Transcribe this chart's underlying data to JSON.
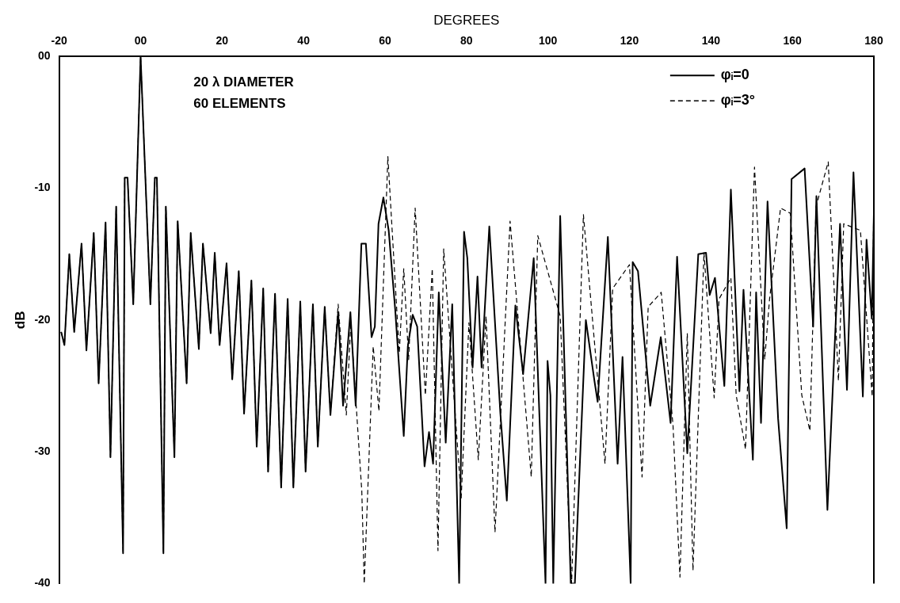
{
  "chart_data": {
    "type": "line",
    "xlabel": "DEGREES",
    "ylabel": "dB",
    "annotations": [
      "20 λ DIAMETER",
      "60 ELEMENTS"
    ],
    "xlim": [
      -20,
      180
    ],
    "xticks": [
      -20,
      {
        "value": 0,
        "label": "00"
      },
      20,
      40,
      60,
      80,
      100,
      120,
      140,
      160,
      180
    ],
    "ylim": [
      -40,
      0
    ],
    "yticks": [
      {
        "value": 0,
        "label": "00"
      },
      -10,
      -20,
      -30,
      -40
    ],
    "grid": false,
    "legend": "top right",
    "marker": "none",
    "series": [
      {
        "name": "φᵢ=0",
        "color": "#000000",
        "line_style": "solid",
        "x": [
          -19.5,
          -18.7,
          -17.5,
          -16.3,
          -14.5,
          -13.3,
          -11.5,
          -10.3,
          -8.6,
          -7.4,
          -6.0,
          -4.3,
          -3.9,
          -3.2,
          -1.8,
          0,
          2.4,
          3.5,
          4.0,
          5.6,
          6.2,
          8.3,
          9.1,
          11.3,
          12.3,
          14.3,
          15.3,
          17.2,
          18.2,
          19.4,
          21.1,
          22.5,
          24.1,
          25.4,
          27.2,
          28.5,
          30.1,
          31.3,
          33.0,
          34.5,
          36.1,
          37.5,
          39.2,
          40.5,
          42.3,
          43.5,
          45.2,
          46.6,
          48.5,
          49.7,
          51.5,
          52.8,
          54.2,
          55.3,
          56.7,
          57.5,
          58.4,
          59.6,
          60.9,
          62.5,
          64.6,
          65.6,
          66.8,
          67.9,
          69.7,
          70.8,
          71.8,
          73.2,
          74.9,
          76.5,
          78.2,
          79.4,
          80.2,
          81.5,
          82.7,
          83.7,
          85.6,
          88.3,
          89.9,
          92.0,
          93.9,
          96.5,
          99.4,
          99.9,
          100.6,
          101.3,
          103.0,
          105.6,
          106.6,
          109.3,
          111.4,
          112.2,
          114.7,
          117.1,
          118.3,
          120.3,
          120.8,
          122.1,
          125.1,
          127.7,
          130.1,
          131.7,
          134.2,
          136.9,
          138.8,
          139.7,
          141.0,
          143.3,
          144.9,
          147.0,
          148.0,
          150.3,
          151.1,
          152.3,
          153.9,
          156.5,
          158.6,
          159.8,
          163.0,
          165.1,
          165.9,
          168.6,
          171.7,
          173.4,
          175.0,
          177.3,
          178.2,
          179.5,
          180
        ],
        "values": [
          -20.9,
          -21.9,
          -15.0,
          -20.9,
          -14.2,
          -22.3,
          -13.4,
          -24.8,
          -12.6,
          -30.4,
          -11.4,
          -37.7,
          -9.2,
          -9.2,
          -18.8,
          0,
          -18.8,
          -9.2,
          -9.2,
          -37.7,
          -11.4,
          -30.4,
          -12.5,
          -24.8,
          -13.4,
          -22.2,
          -14.2,
          -21.0,
          -14.9,
          -21.9,
          -15.7,
          -24.5,
          -16.3,
          -27.1,
          -17.0,
          -29.6,
          -17.6,
          -31.5,
          -18.0,
          -32.7,
          -18.4,
          -32.7,
          -18.6,
          -31.5,
          -18.8,
          -29.6,
          -19.0,
          -27.2,
          -19.4,
          -26.5,
          -19.4,
          -26.5,
          -14.2,
          -14.2,
          -21.3,
          -20.5,
          -12.7,
          -10.7,
          -13.2,
          -19.2,
          -28.8,
          -22.0,
          -19.6,
          -20.5,
          -31.1,
          -28.5,
          -30.9,
          -17.9,
          -29.3,
          -18.8,
          -40,
          -13.3,
          -15.3,
          -23.6,
          -16.7,
          -23.6,
          -12.9,
          -27.0,
          -33.7,
          -18.9,
          -24.1,
          -15.3,
          -40,
          -23.1,
          -25.7,
          -40,
          -12.1,
          -40,
          -40,
          -20.0,
          -24.6,
          -26.2,
          -13.7,
          -30.9,
          -22.8,
          -40,
          -15.6,
          -16.3,
          -26.5,
          -21.3,
          -27.8,
          -15.2,
          -30.1,
          -15.0,
          -14.9,
          -18.1,
          -16.8,
          -25.0,
          -10.1,
          -25.4,
          -17.7,
          -30.6,
          -17.9,
          -27.8,
          -11.0,
          -27.5,
          -35.8,
          -9.3,
          -8.5,
          -20.5,
          -10.6,
          -34.4,
          -12.7,
          -25.3,
          -8.8,
          -25.8,
          -13.9,
          -19.9,
          -12.0
        ]
      },
      {
        "name": "φᵢ=3°",
        "color": "#000000",
        "line_style": "dashed",
        "x": [
          -19.5,
          -18.7,
          -17.5,
          -16.3,
          -14.5,
          -13.3,
          -11.5,
          -10.3,
          -8.6,
          -7.4,
          -6.0,
          -4.3,
          -3.9,
          -3.2,
          -1.8,
          0,
          2.4,
          3.5,
          4.0,
          5.6,
          6.2,
          8.3,
          9.1,
          11.3,
          12.3,
          14.3,
          15.3,
          17.2,
          18.2,
          19.4,
          21.1,
          22.5,
          24.1,
          25.4,
          27.2,
          28.5,
          30.1,
          31.3,
          33.0,
          34.5,
          36.1,
          37.5,
          39.2,
          40.5,
          42.3,
          43.5,
          45.2,
          46.6,
          48.5,
          50.5,
          51.6,
          54.3,
          54.9,
          57.1,
          58.5,
          60.7,
          63.5,
          64.6,
          65.8,
          67.4,
          69.9,
          71.6,
          73.0,
          74.4,
          76.9,
          78.7,
          80.6,
          82.9,
          84.8,
          87.0,
          90.7,
          95.9,
          97.5,
          103.0,
          105.8,
          108.7,
          114.0,
          115.9,
          120.0,
          123.1,
          124.6,
          127.8,
          130.7,
          132.4,
          134.2,
          135.6,
          138.3,
          140.8,
          142.0,
          144.9,
          146.2,
          148.5,
          150.7,
          153.2,
          154.4,
          157.1,
          159.5,
          162.3,
          164.3,
          165.8,
          168.8,
          171.3,
          172.6,
          176.7,
          179.6,
          180
        ],
        "values": [
          -20.9,
          -21.9,
          -15.0,
          -20.9,
          -14.2,
          -22.3,
          -13.4,
          -24.8,
          -12.6,
          -30.4,
          -11.4,
          -37.7,
          -9.2,
          -9.2,
          -18.8,
          0,
          -18.8,
          -9.2,
          -9.2,
          -37.7,
          -11.4,
          -30.4,
          -12.5,
          -24.8,
          -13.4,
          -22.2,
          -14.2,
          -21.0,
          -14.9,
          -21.9,
          -15.7,
          -24.5,
          -16.3,
          -27.1,
          -17.0,
          -29.6,
          -17.6,
          -31.5,
          -18.0,
          -32.7,
          -18.4,
          -32.7,
          -18.6,
          -31.5,
          -18.8,
          -29.6,
          -19.0,
          -27.2,
          -18.8,
          -27.2,
          -20.2,
          -33.0,
          -40,
          -22.0,
          -26.9,
          -7.6,
          -22.5,
          -16.1,
          -23.0,
          -11.5,
          -25.7,
          -16.1,
          -37.5,
          -14.6,
          -25.7,
          -33.5,
          -20.2,
          -30.6,
          -19.7,
          -36.1,
          -12.5,
          -31.9,
          -13.6,
          -19.7,
          -40,
          -12.0,
          -30.9,
          -17.6,
          -15.8,
          -31.9,
          -19.0,
          -17.9,
          -28.0,
          -39.5,
          -21.0,
          -39.0,
          -14.9,
          -25.9,
          -18.4,
          -16.8,
          -25.7,
          -29.8,
          -8.4,
          -23.0,
          -18.4,
          -11.5,
          -11.9,
          -25.7,
          -28.4,
          -11.4,
          -8.0,
          -24.6,
          -12.7,
          -13.2,
          -25.8,
          -9.2
        ]
      }
    ]
  }
}
